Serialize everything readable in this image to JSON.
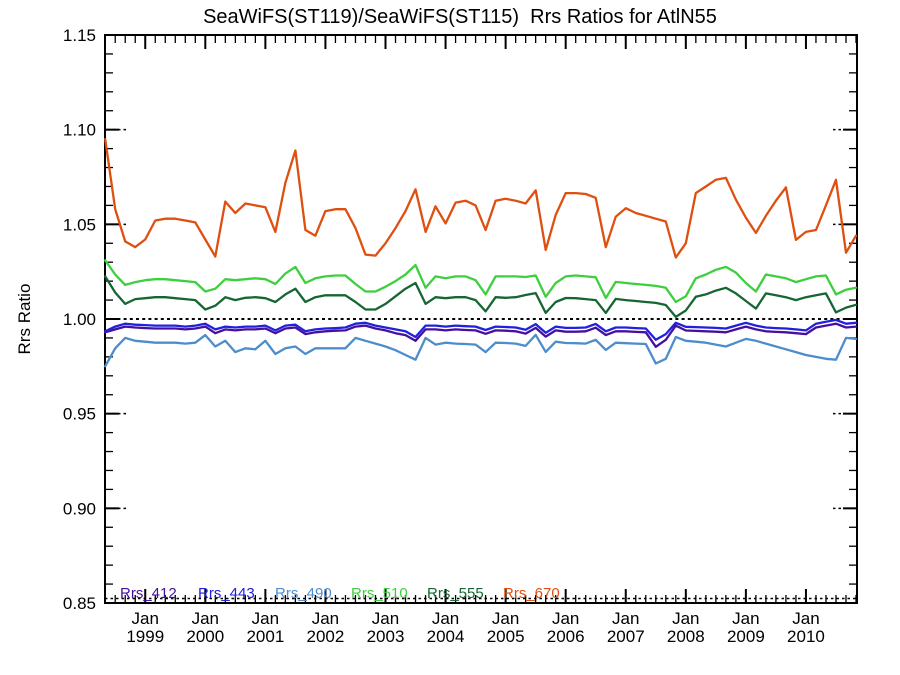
{
  "chart_data": {
    "type": "line",
    "title": "SeaWiFS(ST119)/SeaWiFS(ST115)  Rrs Ratios for AtlN55",
    "ylabel": "Rrs Ratio",
    "ylim": [
      0.85,
      1.15
    ],
    "y_major_step": 0.05,
    "y_minor_step": 0.01,
    "xlim": [
      1998.33,
      2010.85
    ],
    "x_minor_step_years": 0.1667,
    "grid": "dotted reference line at 1.00; dotted stubs at y majors on left and right; dotted line above bottom axis",
    "legend_position": "inside bottom-left",
    "reference_line_y": 1.0,
    "axis_color": "#000000",
    "x_ticks": [
      {
        "t": 1999,
        "month": "Jan",
        "year": "1999"
      },
      {
        "t": 2000,
        "month": "Jan",
        "year": "2000"
      },
      {
        "t": 2001,
        "month": "Jan",
        "year": "2001"
      },
      {
        "t": 2002,
        "month": "Jan",
        "year": "2002"
      },
      {
        "t": 2003,
        "month": "Jan",
        "year": "2003"
      },
      {
        "t": 2004,
        "month": "Jan",
        "year": "2004"
      },
      {
        "t": 2005,
        "month": "Jan",
        "year": "2005"
      },
      {
        "t": 2006,
        "month": "Jan",
        "year": "2006"
      },
      {
        "t": 2007,
        "month": "Jan",
        "year": "2007"
      },
      {
        "t": 2008,
        "month": "Jan",
        "year": "2008"
      },
      {
        "t": 2009,
        "month": "Jan",
        "year": "2009"
      },
      {
        "t": 2010,
        "month": "Jan",
        "year": "2010"
      }
    ],
    "y_tick_labels": [
      "0.85",
      "0.90",
      "0.95",
      "1.00",
      "1.05",
      "1.10",
      "1.15"
    ],
    "x": [
      1998.333,
      1998.5,
      1998.667,
      1998.833,
      1999.0,
      1999.167,
      1999.333,
      1999.5,
      1999.667,
      1999.833,
      2000.0,
      2000.167,
      2000.333,
      2000.5,
      2000.667,
      2000.833,
      2001.0,
      2001.167,
      2001.333,
      2001.5,
      2001.667,
      2001.833,
      2002.0,
      2002.167,
      2002.333,
      2002.5,
      2002.667,
      2002.833,
      2003.0,
      2003.167,
      2003.333,
      2003.5,
      2003.667,
      2003.833,
      2004.0,
      2004.167,
      2004.333,
      2004.5,
      2004.667,
      2004.833,
      2005.0,
      2005.167,
      2005.333,
      2005.5,
      2005.667,
      2005.833,
      2006.0,
      2006.167,
      2006.333,
      2006.5,
      2006.667,
      2006.833,
      2007.0,
      2007.167,
      2007.333,
      2007.5,
      2007.667,
      2007.833,
      2008.0,
      2008.167,
      2008.333,
      2008.5,
      2008.667,
      2008.833,
      2009.0,
      2009.167,
      2009.333,
      2009.5,
      2009.667,
      2009.833,
      2010.0,
      2010.167,
      2010.333,
      2010.5,
      2010.667,
      2010.833
    ],
    "series": [
      {
        "name": "Rrs_412",
        "color": "#45109E",
        "values": [
          0.993,
          0.9945,
          0.996,
          0.9955,
          0.9952,
          0.995,
          0.995,
          0.995,
          0.9945,
          0.995,
          0.996,
          0.9925,
          0.9945,
          0.994,
          0.9945,
          0.9945,
          0.995,
          0.9925,
          0.995,
          0.9955,
          0.992,
          0.993,
          0.9935,
          0.9938,
          0.994,
          0.996,
          0.9965,
          0.995,
          0.994,
          0.9925,
          0.9915,
          0.9885,
          0.9945,
          0.9945,
          0.994,
          0.9945,
          0.9942,
          0.994,
          0.9922,
          0.994,
          0.9938,
          0.9935,
          0.9923,
          0.9953,
          0.9907,
          0.994,
          0.9933,
          0.9933,
          0.9935,
          0.9954,
          0.9915,
          0.9935,
          0.9935,
          0.9932,
          0.993,
          0.9853,
          0.989,
          0.9965,
          0.9939,
          0.9937,
          0.9935,
          0.9933,
          0.993,
          0.9945,
          0.996,
          0.9945,
          0.9935,
          0.9932,
          0.993,
          0.9925,
          0.992,
          0.9955,
          0.9965,
          0.9975,
          0.9955,
          0.996
        ]
      },
      {
        "name": "Rrs_443",
        "color": "#2020DF",
        "values": [
          0.9935,
          0.996,
          0.9975,
          0.997,
          0.9968,
          0.9965,
          0.9965,
          0.9965,
          0.996,
          0.9965,
          0.9975,
          0.9945,
          0.996,
          0.9955,
          0.996,
          0.996,
          0.9965,
          0.994,
          0.9965,
          0.997,
          0.9935,
          0.9945,
          0.995,
          0.9952,
          0.9955,
          0.9975,
          0.998,
          0.9965,
          0.9955,
          0.9945,
          0.9935,
          0.9905,
          0.9965,
          0.9965,
          0.996,
          0.9965,
          0.9962,
          0.996,
          0.9942,
          0.996,
          0.9958,
          0.9955,
          0.9943,
          0.9973,
          0.9927,
          0.996,
          0.9953,
          0.9953,
          0.9955,
          0.9974,
          0.9935,
          0.9955,
          0.9955,
          0.9952,
          0.995,
          0.989,
          0.992,
          0.998,
          0.9959,
          0.9957,
          0.9955,
          0.9953,
          0.995,
          0.9965,
          0.998,
          0.9965,
          0.9955,
          0.9952,
          0.995,
          0.9945,
          0.994,
          0.9975,
          0.9985,
          0.9995,
          0.9975,
          0.998
        ]
      },
      {
        "name": "Rrs_490",
        "color": "#4D8DCB",
        "values": [
          0.975,
          0.9845,
          0.99,
          0.9885,
          0.988,
          0.9875,
          0.9875,
          0.9875,
          0.987,
          0.9875,
          0.9915,
          0.9855,
          0.9885,
          0.9825,
          0.9845,
          0.984,
          0.9885,
          0.9815,
          0.9845,
          0.9855,
          0.9815,
          0.9845,
          0.9845,
          0.9845,
          0.9845,
          0.99,
          0.9885,
          0.987,
          0.9855,
          0.9835,
          0.981,
          0.9785,
          0.99,
          0.9865,
          0.9875,
          0.987,
          0.9868,
          0.9865,
          0.9825,
          0.9875,
          0.9873,
          0.987,
          0.9858,
          0.9916,
          0.9826,
          0.988,
          0.9873,
          0.9872,
          0.987,
          0.989,
          0.9837,
          0.9875,
          0.9872,
          0.987,
          0.9868,
          0.9765,
          0.979,
          0.9905,
          0.9885,
          0.988,
          0.9875,
          0.9865,
          0.9855,
          0.9875,
          0.9895,
          0.9885,
          0.987,
          0.9855,
          0.984,
          0.9825,
          0.981,
          0.98,
          0.979,
          0.9785,
          0.99,
          0.9895
        ]
      },
      {
        "name": "Rrs_510",
        "color": "#3ECF3E",
        "values": [
          1.031,
          1.0235,
          1.018,
          1.0195,
          1.0205,
          1.021,
          1.021,
          1.0205,
          1.02,
          1.0195,
          1.0145,
          1.016,
          1.021,
          1.0205,
          1.021,
          1.0215,
          1.021,
          1.0185,
          1.024,
          1.0275,
          1.019,
          1.0215,
          1.0225,
          1.023,
          1.023,
          1.0185,
          1.0145,
          1.0145,
          1.017,
          1.02,
          1.0235,
          1.0285,
          1.0165,
          1.0225,
          1.0215,
          1.0225,
          1.0225,
          1.0205,
          1.013,
          1.0225,
          1.0225,
          1.0225,
          1.0222,
          1.023,
          1.0117,
          1.019,
          1.0225,
          1.023,
          1.0225,
          1.022,
          1.0111,
          1.0196,
          1.019,
          1.0185,
          1.018,
          1.0175,
          1.0165,
          1.009,
          1.012,
          1.0215,
          1.0235,
          1.026,
          1.0275,
          1.0245,
          1.019,
          1.0145,
          1.0235,
          1.0225,
          1.0215,
          1.0195,
          1.021,
          1.0225,
          1.023,
          1.013,
          1.0155,
          1.0165
        ]
      },
      {
        "name": "Rrs_555",
        "color": "#166633",
        "values": [
          1.0225,
          1.014,
          1.008,
          1.0105,
          1.011,
          1.0115,
          1.0115,
          1.011,
          1.0105,
          1.01,
          1.005,
          1.007,
          1.0115,
          1.01,
          1.0112,
          1.0115,
          1.011,
          1.009,
          1.013,
          1.016,
          1.009,
          1.0115,
          1.0125,
          1.0125,
          1.0125,
          1.009,
          1.005,
          1.005,
          1.008,
          1.012,
          1.016,
          1.019,
          1.008,
          1.0115,
          1.011,
          1.0115,
          1.0115,
          1.01,
          1.004,
          1.0115,
          1.0112,
          1.0115,
          1.0127,
          1.0137,
          1.0032,
          1.009,
          1.0111,
          1.011,
          1.0105,
          1.01,
          1.0032,
          1.0106,
          1.01,
          1.0095,
          1.009,
          1.0085,
          1.0074,
          1.0011,
          1.0045,
          1.0117,
          1.013,
          1.015,
          1.0165,
          1.0135,
          1.0095,
          1.0055,
          1.0135,
          1.0125,
          1.0115,
          1.01,
          1.0115,
          1.0125,
          1.0135,
          1.0035,
          1.006,
          1.0075
        ]
      },
      {
        "name": "Rrs_670",
        "color": "#DF4F10",
        "values": [
          1.095,
          1.058,
          1.041,
          1.038,
          1.042,
          1.052,
          1.053,
          1.053,
          1.052,
          1.051,
          1.042,
          1.033,
          1.062,
          1.056,
          1.061,
          1.06,
          1.059,
          1.046,
          1.072,
          1.089,
          1.047,
          1.044,
          1.057,
          1.058,
          1.058,
          1.048,
          1.034,
          1.0335,
          1.04,
          1.048,
          1.057,
          1.0685,
          1.046,
          1.0595,
          1.0505,
          1.0615,
          1.0625,
          1.06,
          1.047,
          1.0625,
          1.0635,
          1.0625,
          1.061,
          1.068,
          1.0365,
          1.055,
          1.0665,
          1.0665,
          1.066,
          1.064,
          1.038,
          1.054,
          1.0585,
          1.056,
          1.0545,
          1.053,
          1.0515,
          1.0325,
          1.04,
          1.0665,
          1.07,
          1.0735,
          1.0745,
          1.063,
          1.0535,
          1.0455,
          1.0545,
          1.0625,
          1.0695,
          1.0418,
          1.046,
          1.047,
          1.06,
          1.0735,
          1.035,
          1.044
        ]
      }
    ]
  }
}
